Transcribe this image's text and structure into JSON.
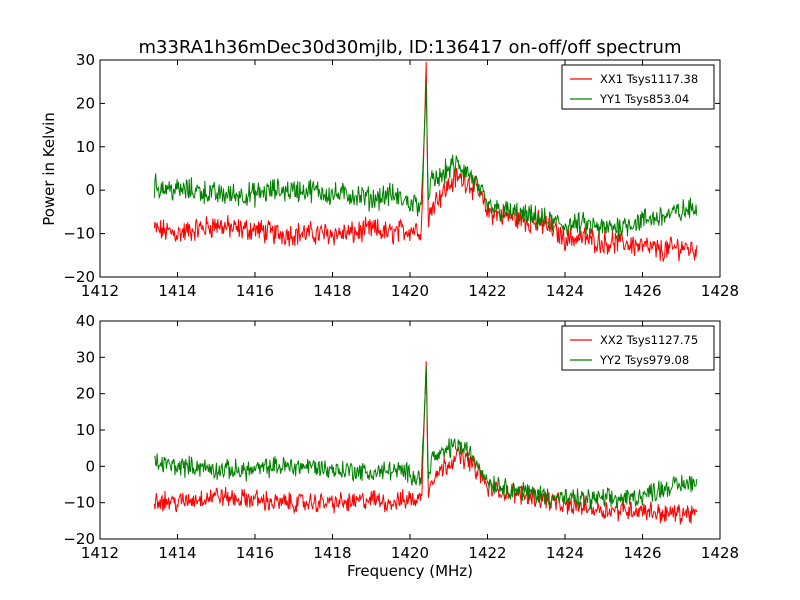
{
  "figure": {
    "title": "m33RA1h36mDec30d30mjlb, ID:136417 on-off/off spectrum",
    "xlabel": "Frequency (MHz)",
    "ylabel": "Power in Kelvin"
  },
  "colors": {
    "xx": "#ff0000",
    "yy": "#008000",
    "axis": "#000000"
  },
  "chart_data": [
    {
      "type": "line",
      "xlim": [
        1412,
        1428
      ],
      "ylim": [
        -20,
        30
      ],
      "xticks": [
        1412,
        1414,
        1416,
        1418,
        1420,
        1422,
        1424,
        1426,
        1428
      ],
      "yticks": [
        -20,
        -10,
        0,
        10,
        20,
        30
      ],
      "legend_position": "top-right",
      "series": [
        {
          "name": "XX1 Tsys1117.38",
          "color": "#ff0000",
          "x": [
            1413.4,
            1414.0,
            1414.5,
            1415.0,
            1415.5,
            1416.0,
            1416.5,
            1417.0,
            1417.5,
            1418.0,
            1418.5,
            1419.0,
            1419.5,
            1420.0,
            1420.3,
            1420.42,
            1420.47,
            1420.55,
            1420.8,
            1421.0,
            1421.2,
            1421.5,
            1421.8,
            1422.0,
            1422.5,
            1423.0,
            1423.5,
            1424.0,
            1424.5,
            1425.0,
            1425.5,
            1426.0,
            1426.5,
            1427.0,
            1427.4
          ],
          "y": [
            -9,
            -10,
            -9,
            -8,
            -9,
            -9,
            -10,
            -10,
            -10,
            -10,
            -10,
            -9,
            -10,
            -9,
            -9,
            30,
            -9,
            -3,
            -1,
            1,
            3,
            2,
            -1,
            -5,
            -6,
            -7,
            -8,
            -11,
            -11,
            -12,
            -12,
            -13,
            -14,
            -13,
            -14
          ]
        },
        {
          "name": "YY1 Tsys853.04",
          "color": "#008000",
          "x": [
            1413.4,
            1414.0,
            1414.5,
            1415.0,
            1415.5,
            1416.0,
            1416.5,
            1417.0,
            1417.5,
            1418.0,
            1418.5,
            1419.0,
            1419.5,
            1420.0,
            1420.3,
            1420.42,
            1420.47,
            1420.55,
            1420.8,
            1421.0,
            1421.2,
            1421.5,
            1421.8,
            1422.0,
            1422.5,
            1423.0,
            1423.5,
            1424.0,
            1424.5,
            1425.0,
            1425.5,
            1426.0,
            1426.5,
            1427.0,
            1427.4
          ],
          "y": [
            1,
            0,
            0,
            -1,
            -1,
            -1,
            0,
            0,
            0,
            -1,
            -1,
            -2,
            -1,
            -3,
            -3,
            25,
            -3,
            2,
            3,
            5,
            6,
            4,
            0,
            -4,
            -5,
            -6,
            -7,
            -8,
            -8,
            -9,
            -8,
            -7,
            -6,
            -5,
            -4
          ]
        }
      ]
    },
    {
      "type": "line",
      "xlim": [
        1412,
        1428
      ],
      "ylim": [
        -20,
        40
      ],
      "xticks": [
        1412,
        1414,
        1416,
        1418,
        1420,
        1422,
        1424,
        1426,
        1428
      ],
      "yticks": [
        -20,
        -10,
        0,
        10,
        20,
        30,
        40
      ],
      "legend_position": "top-right",
      "series": [
        {
          "name": "XX2 Tsys1127.75",
          "color": "#ff0000",
          "x": [
            1413.4,
            1414.0,
            1414.5,
            1415.0,
            1415.5,
            1416.0,
            1416.5,
            1417.0,
            1417.5,
            1418.0,
            1418.5,
            1419.0,
            1419.5,
            1420.0,
            1420.3,
            1420.42,
            1420.47,
            1420.55,
            1420.8,
            1421.0,
            1421.2,
            1421.5,
            1421.8,
            1422.0,
            1422.5,
            1423.0,
            1423.5,
            1424.0,
            1424.5,
            1425.0,
            1425.5,
            1426.0,
            1426.5,
            1427.0,
            1427.4
          ],
          "y": [
            -9,
            -10,
            -9,
            -8,
            -9,
            -9,
            -10,
            -10,
            -10,
            -10,
            -10,
            -9,
            -10,
            -9,
            -9,
            30,
            -9,
            -3,
            -1,
            1,
            3,
            2,
            -2,
            -6,
            -7,
            -8,
            -9,
            -11,
            -11,
            -12,
            -12,
            -12,
            -13,
            -13,
            -13
          ]
        },
        {
          "name": "YY2 Tsys979.08",
          "color": "#008000",
          "x": [
            1413.4,
            1414.0,
            1414.5,
            1415.0,
            1415.5,
            1416.0,
            1416.5,
            1417.0,
            1417.5,
            1418.0,
            1418.5,
            1419.0,
            1419.5,
            1420.0,
            1420.3,
            1420.42,
            1420.47,
            1420.55,
            1420.8,
            1421.0,
            1421.2,
            1421.5,
            1421.8,
            1422.0,
            1422.5,
            1423.0,
            1423.5,
            1424.0,
            1424.5,
            1425.0,
            1425.5,
            1426.0,
            1426.5,
            1427.0,
            1427.4
          ],
          "y": [
            1,
            0,
            0,
            -1,
            -1,
            -1,
            0,
            0,
            0,
            -1,
            -1,
            -2,
            -1,
            -2,
            -3,
            28,
            -3,
            2,
            3,
            5,
            6,
            4,
            0,
            -4,
            -6,
            -7,
            -8,
            -9,
            -9,
            -9,
            -9,
            -8,
            -6,
            -5,
            -4
          ]
        }
      ]
    }
  ]
}
